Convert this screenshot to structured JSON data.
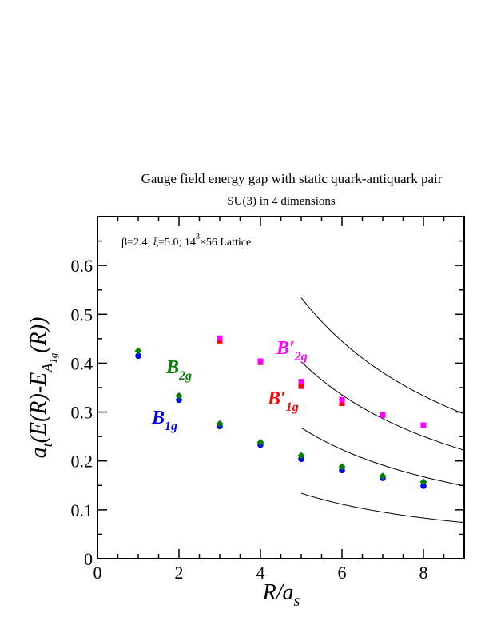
{
  "chart_data": {
    "type": "scatter",
    "title": "Gauge field energy gap with static quark-antiquark pair",
    "subtitle": "SU(3) in 4 dimensions",
    "annotation": "β=2.4;  ξ=5.0;  14³×56 Lattice",
    "xlim": [
      0,
      9
    ],
    "ylim": [
      0,
      0.7
    ],
    "x_ticks": [
      "0",
      "2",
      "4",
      "6",
      "8"
    ],
    "y_ticks": [
      "0",
      "0.1",
      "0.2",
      "0.3",
      "0.4",
      "0.5",
      "0.6"
    ],
    "grid": false,
    "series": [
      {
        "name": "B1g",
        "label_main": "B",
        "label_sub": "1g",
        "color": "#0000ff",
        "marker": "circle",
        "points": [
          [
            1,
            0.415
          ],
          [
            2,
            0.325
          ],
          [
            3,
            0.271
          ],
          [
            4,
            0.233
          ],
          [
            5,
            0.204
          ],
          [
            6,
            0.181
          ],
          [
            7,
            0.165
          ],
          [
            8,
            0.149
          ]
        ]
      },
      {
        "name": "B2g",
        "label_main": "B",
        "label_sub": "2g",
        "color": "#008000",
        "marker": "diamond",
        "points": [
          [
            1,
            0.425
          ],
          [
            2,
            0.333
          ],
          [
            3,
            0.276
          ],
          [
            4,
            0.238
          ],
          [
            5,
            0.211
          ],
          [
            6,
            0.188
          ],
          [
            7,
            0.169
          ],
          [
            8,
            0.157
          ]
        ]
      },
      {
        "name": "B′1g",
        "label_main": "B′",
        "label_sub": "1g",
        "color": "#ff0000",
        "marker": "square",
        "points": [
          [
            3,
            0.446
          ],
          [
            4,
            0.402
          ],
          [
            5,
            0.353
          ],
          [
            6,
            0.318
          ],
          [
            7,
            0.294
          ],
          [
            8,
            0.273
          ]
        ]
      },
      {
        "name": "B′2g",
        "label_main": "B′",
        "label_sub": "2g",
        "color": "#ff00ff",
        "marker": "square",
        "points": [
          [
            3,
            0.451
          ],
          [
            4,
            0.404
          ],
          [
            5,
            0.362
          ],
          [
            6,
            0.325
          ],
          [
            7,
            0.294
          ],
          [
            8,
            0.273
          ]
        ]
      }
    ],
    "curves": [
      {
        "x_start": 5,
        "x_end": 9,
        "y_at_start": 0.534,
        "y_at_end": 0.296
      },
      {
        "x_start": 5,
        "x_end": 9,
        "y_at_start": 0.403,
        "y_at_end": 0.222
      },
      {
        "x_start": 5,
        "x_end": 9,
        "y_at_start": 0.268,
        "y_at_end": 0.149
      },
      {
        "x_start": 5,
        "x_end": 9,
        "y_at_start": 0.134,
        "y_at_end": 0.074
      }
    ]
  },
  "axes": {
    "ylabel": {
      "a": "a",
      "t": "t",
      "mid": "(E(R)-E",
      "A": "A",
      "g1": "1g",
      "end": "(R))"
    },
    "xlabel": {
      "r": "R/a",
      "s": "s"
    }
  },
  "annotation_parts": {
    "pre": "β=2.4;  ξ=5.0;  14",
    "sup": "3",
    "post": "×56 Lattice"
  }
}
